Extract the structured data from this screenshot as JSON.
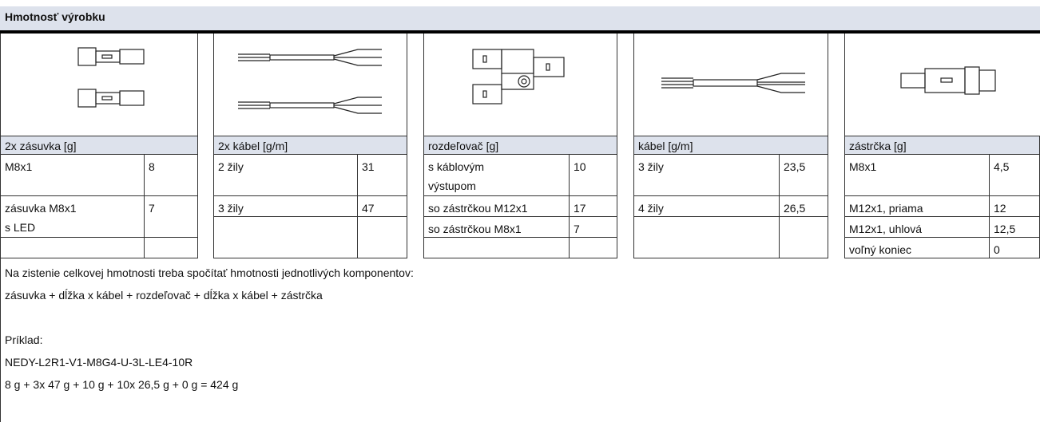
{
  "header": {
    "title": "Hmotnosť výrobku"
  },
  "groups": [
    {
      "label": "2x zásuvka [g]",
      "rows": [
        [
          "M8x1",
          "8"
        ],
        [
          "zásuvka M8x1\ns LED",
          "7"
        ]
      ]
    },
    {
      "label": "2x kábel [g/m]",
      "rows": [
        [
          "2 žily",
          "31"
        ],
        [
          "3 žily",
          "47"
        ]
      ]
    },
    {
      "label": "rozdeľovač [g]",
      "rows": [
        [
          "s káblovým\nvýstupom",
          "10"
        ],
        [
          "so zástrčkou M12x1",
          "17"
        ],
        [
          "so zástrčkou M8x1",
          "7"
        ]
      ]
    },
    {
      "label": "kábel [g/m]",
      "rows": [
        [
          "3 žily",
          "23,5"
        ],
        [
          "4 žily",
          "26,5"
        ]
      ]
    },
    {
      "label": "zástrčka [g]",
      "rows": [
        [
          "M8x1",
          "4,5"
        ],
        [
          "M12x1, priama",
          "12"
        ],
        [
          "M12x1, uhlová",
          "12,5"
        ],
        [
          "voľný koniec",
          "0"
        ]
      ]
    }
  ],
  "notes": [
    "Na zistenie celkovej hmotnosti treba spočítať hmotnosti jednotlivých komponentov:",
    "zásuvka + dĺžka x kábel + rozdeľovač + dĺžka x kábel + zástrčka",
    "Príklad:",
    "NEDY-L2R1-V1-M8G4-U-3L-LE4-10R",
    "8 g + 3x 47 g + 10 g + 10x 26,5 g + 0 g = 424 g"
  ]
}
